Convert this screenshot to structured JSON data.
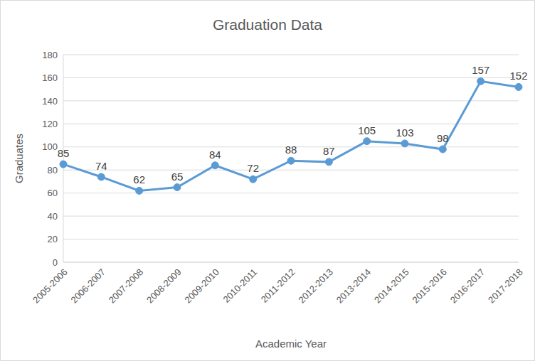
{
  "chart_data": {
    "type": "line",
    "title": "Graduation Data",
    "x_label": "Academic Year",
    "y_label": "Graduates",
    "categories": [
      "2005-2006",
      "2006-2007",
      "2007-2008",
      "2008-2009",
      "2009-2010",
      "2010-2011",
      "2011-2012",
      "2012-2013",
      "2013-2014",
      "2014-2015",
      "2015-2016",
      "2016-2017",
      "2017-2018"
    ],
    "values": [
      85,
      74,
      62,
      65,
      84,
      72,
      88,
      87,
      105,
      103,
      98,
      157,
      152
    ],
    "color": "#5b9bd5",
    "marker": "circle",
    "line_style": "solid",
    "ylim": [
      0,
      180
    ],
    "yticks": [
      0,
      20,
      40,
      60,
      80,
      100,
      120,
      140,
      160,
      180
    ],
    "grid": true,
    "data_labels": true
  }
}
